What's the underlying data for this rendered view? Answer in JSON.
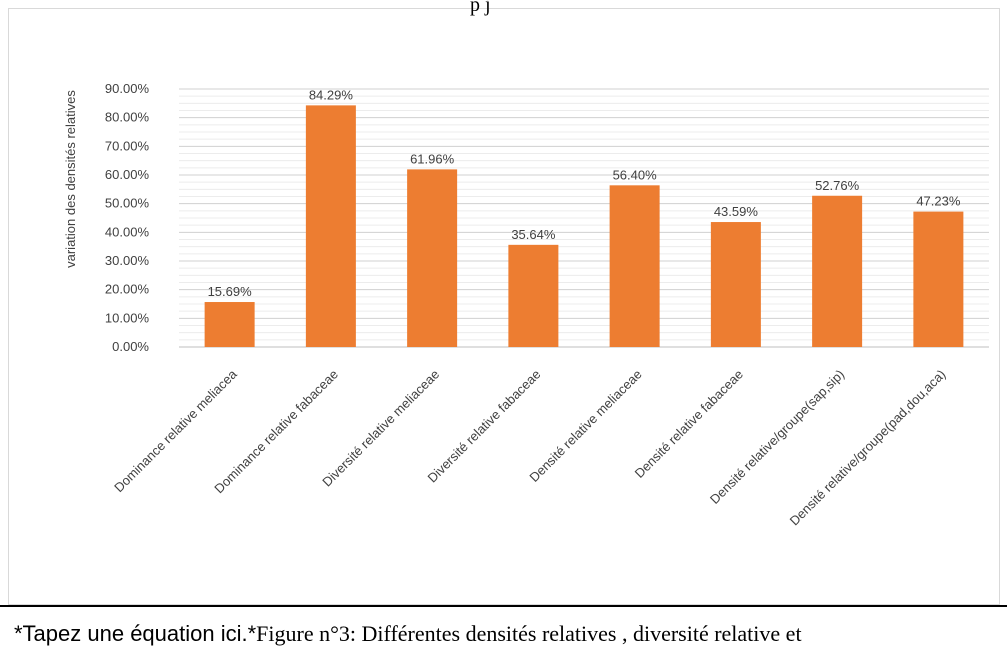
{
  "header_fragment": "p  j",
  "chart_data": {
    "type": "bar",
    "ylabel": "variation des densités relatives",
    "ylim": [
      0,
      90
    ],
    "yticks": [
      "0.00%",
      "10.00%",
      "20.00%",
      "30.00%",
      "40.00%",
      "50.00%",
      "60.00%",
      "70.00%",
      "80.00%",
      "90.00%"
    ],
    "categories": [
      "Dominance relative meliacea",
      "Dominance relative fabaceae",
      "Diversité relative meliaceae",
      "Diversité relative fabaceae",
      "Densité relative meliaceae",
      "Densité relative fabaceae",
      "Densité relative/groupe(sap,sip)",
      "Densité relative/groupe(pad,dou,aca)"
    ],
    "values": [
      15.69,
      84.29,
      61.96,
      35.64,
      56.4,
      43.59,
      52.76,
      47.23
    ],
    "data_labels": [
      "15.69%",
      "84.29%",
      "61.96%",
      "35.64%",
      "56.40%",
      "43.59%",
      "52.76%",
      "47.23%"
    ],
    "grid": true,
    "bar_color": "#ed7d31"
  },
  "caption": {
    "prefix": "*Tapez une équation ici.*",
    "text": "Figure n°3: Différentes densités relatives , diversité relative et"
  }
}
